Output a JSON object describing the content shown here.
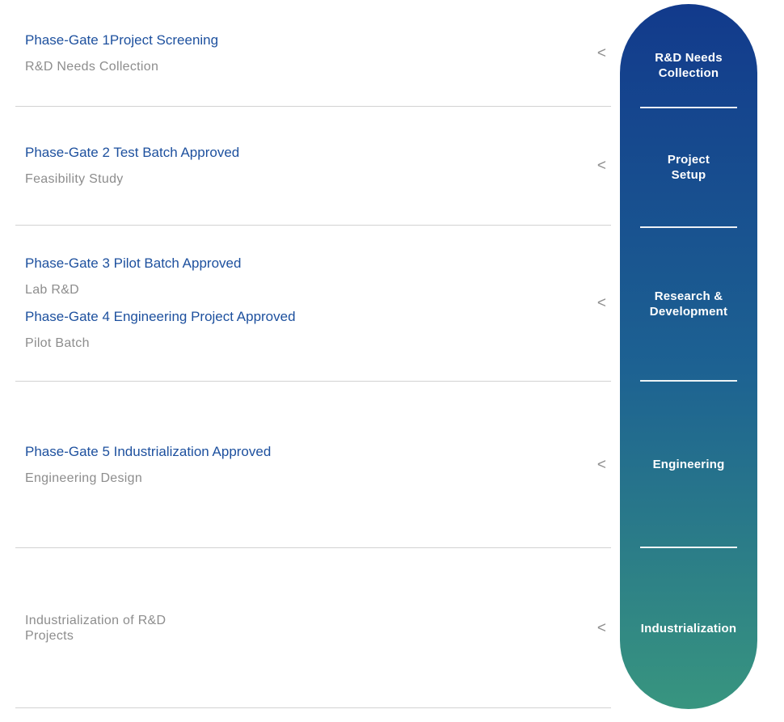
{
  "rows": [
    {
      "title": "Phase-Gate 1Project Screening",
      "subtitle": "R&D Needs Collection",
      "chevron": "<"
    },
    {
      "title": "Phase-Gate 2 Test Batch Approved",
      "subtitle": "Feasibility Study",
      "chevron": "<"
    },
    {
      "title": "Phase-Gate 3 Pilot Batch Approved",
      "subtitle": "Lab R&D",
      "title2": "Phase-Gate 4 Engineering Project Approved",
      "subtitle2": "Pilot Batch",
      "chevron": "<"
    },
    {
      "title": "Phase-Gate 5 Industrialization Approved",
      "subtitle": "Engineering Design",
      "chevron": "<"
    },
    {
      "subtitle": "Industrialization of R&D Projects",
      "chevron": "<"
    }
  ],
  "pill": {
    "stages": [
      {
        "label": "R&D Needs\nCollection"
      },
      {
        "label": "Project\nSetup"
      },
      {
        "label": "Research &\nDevelopment"
      },
      {
        "label": "Engineering"
      },
      {
        "label": "Industrialization"
      }
    ],
    "gradient_top": "#123a8c",
    "gradient_middle": "#1d6292",
    "gradient_bottom": "#38957f"
  },
  "colors": {
    "title_blue": "#1d509e",
    "subtitle_gray": "#8d8d8d",
    "divider_gray": "#d2d2d2",
    "chevron_gray": "#8f8f8f",
    "stage_text": "#ffffff"
  }
}
